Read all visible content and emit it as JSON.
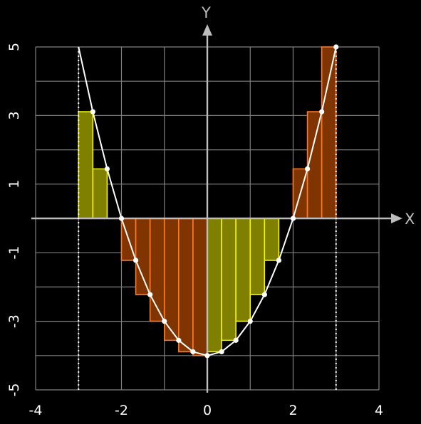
{
  "chart_data": {
    "type": "line",
    "title": "",
    "xlabel": "X",
    "ylabel": "Y",
    "xlim": [
      -4,
      4
    ],
    "ylim": [
      -5,
      5
    ],
    "grid": true,
    "x_ticks": [
      "-4",
      "-2",
      "0",
      "2",
      "4"
    ],
    "y_ticks": [
      "5",
      "3",
      "1",
      "-1",
      "-3",
      "-5"
    ],
    "curve": {
      "x": [
        -3,
        -2.6667,
        -2.3333,
        -2,
        -1.6667,
        -1.3333,
        -1,
        -0.6667,
        -0.3333,
        0,
        0.3333,
        0.6667,
        1,
        1.3333,
        1.6667,
        2,
        2.3333,
        2.6667,
        3
      ],
      "y": [
        5,
        3.1111,
        1.4444,
        0,
        -1.2222,
        -2.2222,
        -3,
        -3.5556,
        -3.8889,
        -4,
        -3.8889,
        -3.5556,
        -3,
        -2.2222,
        -1.2222,
        0,
        1.4444,
        3.1111,
        5
      ]
    },
    "points": {
      "x": [
        -2.6667,
        -2.3333,
        -2,
        -1.6667,
        -1.3333,
        -1,
        -0.6667,
        -0.3333,
        0,
        0.3333,
        0.6667,
        1,
        1.3333,
        1.6667,
        2,
        2.3333,
        2.6667,
        3
      ],
      "y": [
        3.1111,
        1.4444,
        0,
        -1.2222,
        -2.2222,
        -3,
        -3.5556,
        -3.8889,
        -4,
        -3.8889,
        -3.5556,
        -3,
        -2.2222,
        -1.2222,
        0,
        1.4444,
        3.1111,
        5
      ]
    },
    "integration_bounds": [
      -3,
      3
    ],
    "step_width": 0.3333,
    "rectangles": [
      {
        "x0": -3,
        "x1": -2.6667,
        "height": 3.1111,
        "fill": "yellow"
      },
      {
        "x0": -2.6667,
        "x1": -2.3333,
        "height": 1.4444,
        "fill": "yellow"
      },
      {
        "x0": -2.3333,
        "x1": -2,
        "height": 0,
        "fill": "yellow"
      },
      {
        "x0": -2,
        "x1": -1.6667,
        "height": -1.2222,
        "fill": "orange"
      },
      {
        "x0": -1.6667,
        "x1": -1.3333,
        "height": -2.2222,
        "fill": "orange"
      },
      {
        "x0": -1.3333,
        "x1": -1,
        "height": -3,
        "fill": "orange"
      },
      {
        "x0": -1,
        "x1": -0.6667,
        "height": -3.5556,
        "fill": "orange"
      },
      {
        "x0": -0.6667,
        "x1": -0.3333,
        "height": -3.8889,
        "fill": "orange"
      },
      {
        "x0": -0.3333,
        "x1": 0,
        "height": -4,
        "fill": "orange"
      },
      {
        "x0": 0,
        "x1": 0.3333,
        "height": -3.8889,
        "fill": "yellow"
      },
      {
        "x0": 0.3333,
        "x1": 0.6667,
        "height": -3.5556,
        "fill": "yellow"
      },
      {
        "x0": 0.6667,
        "x1": 1,
        "height": -3,
        "fill": "yellow"
      },
      {
        "x0": 1,
        "x1": 1.3333,
        "height": -2.2222,
        "fill": "yellow"
      },
      {
        "x0": 1.3333,
        "x1": 1.6667,
        "height": -1.2222,
        "fill": "yellow"
      },
      {
        "x0": 1.6667,
        "x1": 2,
        "height": 0,
        "fill": "yellow"
      },
      {
        "x0": 2,
        "x1": 2.3333,
        "height": 1.4444,
        "fill": "orange"
      },
      {
        "x0": 2.3333,
        "x1": 2.6667,
        "height": 3.1111,
        "fill": "orange"
      },
      {
        "x0": 2.6667,
        "x1": 3,
        "height": 5,
        "fill": "orange"
      }
    ],
    "colors": {
      "background": "#000000",
      "grid": "#7f7f7f",
      "axis": "#bdbdbd",
      "curve": "#ffffff",
      "yellow_fill": "#808000",
      "yellow_edge": "#f5f500",
      "orange_fill": "#803500",
      "orange_edge": "#ff7a22"
    }
  }
}
